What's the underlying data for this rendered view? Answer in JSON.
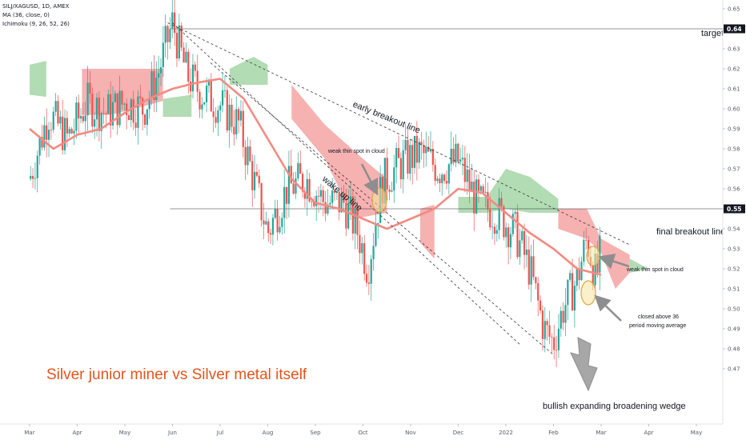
{
  "legend": {
    "symbol": "SILJ/XAGUSD, 1D, AMEX",
    "ma": "MA (36, close, 0)",
    "ichimoku": "Ichimoku (9, 26, 52, 26)"
  },
  "annotations": {
    "title": "Silver junior miner vs Silver metal itself",
    "target": "target",
    "early_breakout": "early breakout line",
    "wake_up": "wake up line",
    "final_breakout": "final breakout line",
    "weak_spot_1": "weak thin spot in cloud",
    "weak_spot_2": "weak thin spot in cloud",
    "closed_above_1": "closed above 36",
    "closed_above_2": "period moving average",
    "wedge": "bullish expanding broadening wedge"
  },
  "colors": {
    "up": "#26a69a",
    "down": "#ef5350",
    "ma": "#f28b82",
    "cloud_bull": "#a5d6a7",
    "cloud_bear": "#f4a3a3",
    "title": "#e2541d",
    "price_label_bg": "#131722",
    "axis_text": "#555b66"
  },
  "chart_data": {
    "type": "candlestick",
    "x_ticks": [
      "Mar",
      "Apr",
      "May",
      "Jun",
      "Jul",
      "Aug",
      "Sep",
      "Oct",
      "Nov",
      "Dec",
      "2022",
      "Feb",
      "Mar",
      "Apr",
      "May"
    ],
    "y_ticks": [
      "0.65",
      "0.64",
      "0.63",
      "0.62",
      "0.61",
      "0.60",
      "0.59",
      "0.58",
      "0.57",
      "0.56",
      "0.55",
      "0.54",
      "0.53",
      "0.52",
      "0.51",
      "0.50",
      "0.49",
      "0.48",
      "0.47"
    ],
    "ylim": [
      0.465,
      0.655
    ],
    "price_labels": [
      {
        "price": 0.64,
        "text": "0.64"
      },
      {
        "price": 0.55,
        "text": "0.55"
      }
    ],
    "horizontal_levels": [
      0.64,
      0.55
    ],
    "ma_period": 36,
    "price_path": [
      {
        "x": 0,
        "y": 0.565
      },
      {
        "x": 0.4,
        "y": 0.598
      },
      {
        "x": 0.8,
        "y": 0.585
      },
      {
        "x": 1.2,
        "y": 0.603
      },
      {
        "x": 1.6,
        "y": 0.598
      },
      {
        "x": 2.0,
        "y": 0.603
      },
      {
        "x": 2.4,
        "y": 0.6
      },
      {
        "x": 2.7,
        "y": 0.618
      },
      {
        "x": 3.0,
        "y": 0.643
      },
      {
        "x": 3.3,
        "y": 0.617
      },
      {
        "x": 3.6,
        "y": 0.608
      },
      {
        "x": 4.0,
        "y": 0.602
      },
      {
        "x": 4.4,
        "y": 0.592
      },
      {
        "x": 4.7,
        "y": 0.565
      },
      {
        "x": 5.0,
        "y": 0.538
      },
      {
        "x": 5.4,
        "y": 0.56
      },
      {
        "x": 5.8,
        "y": 0.565
      },
      {
        "x": 6.2,
        "y": 0.553
      },
      {
        "x": 6.6,
        "y": 0.553
      },
      {
        "x": 6.9,
        "y": 0.538
      },
      {
        "x": 7.1,
        "y": 0.52
      },
      {
        "x": 7.4,
        "y": 0.563
      },
      {
        "x": 7.8,
        "y": 0.573
      },
      {
        "x": 8.2,
        "y": 0.578
      },
      {
        "x": 8.6,
        "y": 0.57
      },
      {
        "x": 9.0,
        "y": 0.574
      },
      {
        "x": 9.4,
        "y": 0.553
      },
      {
        "x": 9.8,
        "y": 0.548
      },
      {
        "x": 10.2,
        "y": 0.538
      },
      {
        "x": 10.5,
        "y": 0.52
      },
      {
        "x": 10.8,
        "y": 0.49
      },
      {
        "x": 11.0,
        "y": 0.483
      },
      {
        "x": 11.2,
        "y": 0.5
      },
      {
        "x": 11.5,
        "y": 0.515
      },
      {
        "x": 11.7,
        "y": 0.535
      },
      {
        "x": 11.9,
        "y": 0.515
      },
      {
        "x": 12.0,
        "y": 0.53
      }
    ],
    "ma_line": [
      {
        "x": 0,
        "y": 0.59
      },
      {
        "x": 0.5,
        "y": 0.58
      },
      {
        "x": 1.0,
        "y": 0.587
      },
      {
        "x": 1.5,
        "y": 0.59
      },
      {
        "x": 2.0,
        "y": 0.598
      },
      {
        "x": 2.5,
        "y": 0.605
      },
      {
        "x": 3.0,
        "y": 0.61
      },
      {
        "x": 3.5,
        "y": 0.613
      },
      {
        "x": 4.0,
        "y": 0.615
      },
      {
        "x": 4.5,
        "y": 0.605
      },
      {
        "x": 5.0,
        "y": 0.585
      },
      {
        "x": 5.5,
        "y": 0.565
      },
      {
        "x": 6.0,
        "y": 0.553
      },
      {
        "x": 6.5,
        "y": 0.55
      },
      {
        "x": 7.0,
        "y": 0.545
      },
      {
        "x": 7.5,
        "y": 0.54
      },
      {
        "x": 8.0,
        "y": 0.545
      },
      {
        "x": 8.5,
        "y": 0.55
      },
      {
        "x": 9.0,
        "y": 0.56
      },
      {
        "x": 9.5,
        "y": 0.558
      },
      {
        "x": 10.0,
        "y": 0.548
      },
      {
        "x": 10.5,
        "y": 0.538
      },
      {
        "x": 11.0,
        "y": 0.53
      },
      {
        "x": 11.5,
        "y": 0.52
      },
      {
        "x": 12.0,
        "y": 0.517
      }
    ],
    "cloud_segments": [
      {
        "type": "bull",
        "upper": [
          {
            "x": 0,
            "y": 0.622
          },
          {
            "x": 0.35,
            "y": 0.624
          }
        ],
        "lower": [
          {
            "x": 0,
            "y": 0.607
          },
          {
            "x": 0.35,
            "y": 0.606
          }
        ]
      },
      {
        "type": "bear",
        "upper": [
          {
            "x": 1.1,
            "y": 0.62
          },
          {
            "x": 2.8,
            "y": 0.62
          }
        ],
        "lower": [
          {
            "x": 1.1,
            "y": 0.597
          },
          {
            "x": 1.7,
            "y": 0.597
          },
          {
            "x": 2.2,
            "y": 0.6
          },
          {
            "x": 2.8,
            "y": 0.604
          }
        ]
      },
      {
        "type": "bull",
        "upper": [
          {
            "x": 2.8,
            "y": 0.605
          },
          {
            "x": 3.4,
            "y": 0.607
          }
        ],
        "lower": [
          {
            "x": 2.8,
            "y": 0.596
          },
          {
            "x": 3.4,
            "y": 0.596
          }
        ]
      },
      {
        "type": "bull",
        "upper": [
          {
            "x": 4.2,
            "y": 0.62
          },
          {
            "x": 4.7,
            "y": 0.626
          },
          {
            "x": 5.0,
            "y": 0.622
          }
        ],
        "lower": [
          {
            "x": 4.2,
            "y": 0.612
          },
          {
            "x": 4.7,
            "y": 0.612
          },
          {
            "x": 5.0,
            "y": 0.612
          }
        ]
      },
      {
        "type": "bear",
        "upper": [
          {
            "x": 5.5,
            "y": 0.612
          },
          {
            "x": 6.2,
            "y": 0.592
          },
          {
            "x": 7.0,
            "y": 0.575
          },
          {
            "x": 7.5,
            "y": 0.565
          }
        ],
        "lower": [
          {
            "x": 5.5,
            "y": 0.595
          },
          {
            "x": 6.2,
            "y": 0.575
          },
          {
            "x": 6.8,
            "y": 0.545
          },
          {
            "x": 7.5,
            "y": 0.548
          }
        ]
      },
      {
        "type": "bear",
        "upper": [
          {
            "x": 8.2,
            "y": 0.55
          },
          {
            "x": 8.5,
            "y": 0.552
          }
        ],
        "lower": [
          {
            "x": 8.2,
            "y": 0.533
          },
          {
            "x": 8.5,
            "y": 0.525
          }
        ]
      },
      {
        "type": "bull",
        "upper": [
          {
            "x": 9.0,
            "y": 0.556
          },
          {
            "x": 9.6,
            "y": 0.556
          },
          {
            "x": 10.0,
            "y": 0.57
          },
          {
            "x": 10.5,
            "y": 0.566
          },
          {
            "x": 11.1,
            "y": 0.555
          }
        ],
        "lower": [
          {
            "x": 9.0,
            "y": 0.548
          },
          {
            "x": 9.6,
            "y": 0.548
          },
          {
            "x": 10.0,
            "y": 0.55
          },
          {
            "x": 10.5,
            "y": 0.548
          },
          {
            "x": 11.1,
            "y": 0.548
          }
        ]
      },
      {
        "type": "bear",
        "upper": [
          {
            "x": 11.1,
            "y": 0.55
          },
          {
            "x": 11.7,
            "y": 0.55
          },
          {
            "x": 12.0,
            "y": 0.535
          },
          {
            "x": 12.6,
            "y": 0.527
          }
        ],
        "lower": [
          {
            "x": 11.1,
            "y": 0.54
          },
          {
            "x": 11.7,
            "y": 0.535
          },
          {
            "x": 12.0,
            "y": 0.528
          },
          {
            "x": 12.3,
            "y": 0.51
          },
          {
            "x": 12.6,
            "y": 0.518
          }
        ]
      },
      {
        "type": "bull",
        "upper": [
          {
            "x": 12.6,
            "y": 0.525
          },
          {
            "x": 13.0,
            "y": 0.52
          }
        ],
        "lower": [
          {
            "x": 12.6,
            "y": 0.518
          },
          {
            "x": 13.0,
            "y": 0.52
          }
        ]
      }
    ],
    "trendlines": [
      {
        "name": "early-breakout-line",
        "from": {
          "x": 2.9,
          "y": 0.643
        },
        "to": {
          "x": 12.6,
          "y": 0.532
        }
      },
      {
        "name": "wake-up-line",
        "from": {
          "x": 3.0,
          "y": 0.643
        },
        "to": {
          "x": 10.3,
          "y": 0.482
        }
      },
      {
        "name": "wedge-lower-line",
        "from": {
          "x": 3.8,
          "y": 0.623
        },
        "to": {
          "x": 11.0,
          "y": 0.477
        }
      }
    ]
  }
}
